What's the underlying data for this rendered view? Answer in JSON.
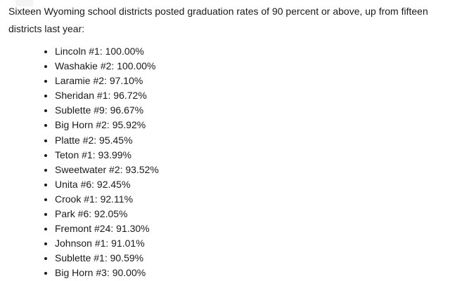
{
  "document": {
    "intro": "Sixteen Wyoming school districts posted graduation rates of 90 percent or above, up from fifteen districts last year:",
    "districts": [
      "Lincoln #1: 100.00%",
      "Washakie #2: 100.00%",
      "Laramie #2: 97.10%",
      "Sheridan #1: 96.72%",
      "Sublette #9: 96.67%",
      "Big Horn #2: 95.92%",
      "Platte #2: 95.45%",
      "Teton #1: 93.99%",
      "Sweetwater #2: 93.52%",
      "Unita #6: 92.45%",
      "Crook #1: 92.11%",
      "Park #6: 92.05%",
      "Fremont #24: 91.30%",
      "Johnson #1: 91.01%",
      "Sublette #1: 90.59%",
      "Big Horn #3: 90.00%"
    ],
    "text_color": "#1a1a1a",
    "background_color": "#ffffff"
  }
}
